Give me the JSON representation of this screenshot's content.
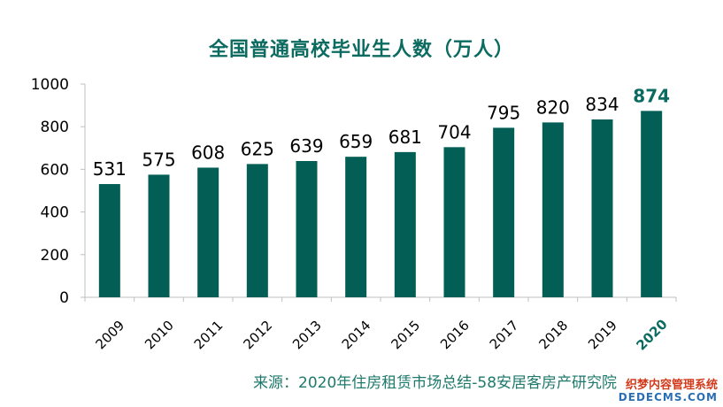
{
  "chart_data": {
    "type": "bar",
    "title": "全国普通高校毕业生人数（万人）",
    "categories": [
      "2009",
      "2010",
      "2011",
      "2012",
      "2013",
      "2014",
      "2015",
      "2016",
      "2017",
      "2018",
      "2019",
      "2020"
    ],
    "values": [
      531,
      575,
      608,
      625,
      639,
      659,
      681,
      704,
      795,
      820,
      834,
      874
    ],
    "ylim": [
      0,
      1000
    ],
    "yticks": [
      0,
      200,
      400,
      600,
      800,
      1000
    ],
    "highlight_category": "2020",
    "bar_color": "#035f55",
    "highlight_label_color": "#0b6b60",
    "grid": false,
    "legend": "none"
  },
  "source": "来源：2020年住房租赁市场总结-58安居客房产研究院",
  "watermark": {
    "line1": "织梦内容管理系统",
    "line2": "DEDECMS.COM"
  }
}
